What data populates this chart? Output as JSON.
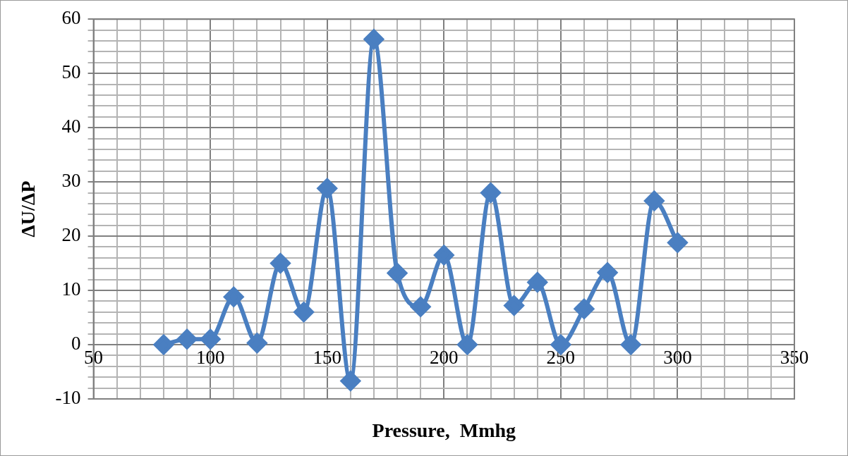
{
  "chart_data": {
    "type": "line",
    "xlabel": "Pressure,  Mmhg",
    "ylabel": "ΔU/ΔP",
    "x": [
      80,
      90,
      100,
      110,
      120,
      130,
      140,
      150,
      160,
      170,
      180,
      190,
      200,
      210,
      220,
      230,
      240,
      250,
      260,
      270,
      280,
      290,
      300
    ],
    "series": [
      {
        "color": "#4a7fc1",
        "values": [
          0,
          1,
          1,
          8.8,
          0.3,
          15,
          6,
          28.8,
          -6.7,
          56.3,
          13.2,
          7,
          16.5,
          0,
          28,
          7.2,
          11.5,
          0,
          6.6,
          13.3,
          0,
          26.5,
          18.8
        ]
      }
    ],
    "xlim": [
      50,
      350
    ],
    "xticks": [
      50,
      {
        "value": 60,
        "label": null
      },
      {
        "value": 70,
        "label": null
      },
      {
        "value": 80,
        "label": null
      },
      {
        "value": 90,
        "label": null
      },
      100,
      {
        "value": 110,
        "label": null
      },
      {
        "value": 120,
        "label": null
      },
      {
        "value": 130,
        "label": null
      },
      {
        "value": 140,
        "label": null
      },
      150,
      {
        "value": 160,
        "label": null
      },
      {
        "value": 170,
        "label": null
      },
      {
        "value": 180,
        "label": null
      },
      {
        "value": 190,
        "label": null
      },
      200,
      {
        "value": 210,
        "label": null
      },
      {
        "value": 220,
        "label": null
      },
      {
        "value": 230,
        "label": null
      },
      {
        "value": 240,
        "label": null
      },
      250,
      {
        "value": 260,
        "label": null
      },
      {
        "value": 270,
        "label": null
      },
      {
        "value": 280,
        "label": null
      },
      {
        "value": 290,
        "label": null
      },
      300,
      {
        "value": 310,
        "label": null
      },
      {
        "value": 320,
        "label": null
      },
      {
        "value": 330,
        "label": null
      },
      {
        "value": 340,
        "label": null
      },
      350
    ],
    "ylim": [
      -10,
      60
    ],
    "yticks": [
      -10,
      {
        "value": -8,
        "label": null
      },
      {
        "value": -6,
        "label": null
      },
      {
        "value": -4,
        "label": null
      },
      {
        "value": -2,
        "label": null
      },
      0,
      {
        "value": 2,
        "label": null
      },
      {
        "value": 4,
        "label": null
      },
      {
        "value": 6,
        "label": null
      },
      {
        "value": 8,
        "label": null
      },
      10,
      {
        "value": 12,
        "label": null
      },
      {
        "value": 14,
        "label": null
      },
      {
        "value": 16,
        "label": null
      },
      {
        "value": 18,
        "label": null
      },
      20,
      {
        "value": 22,
        "label": null
      },
      {
        "value": 24,
        "label": null
      },
      {
        "value": 26,
        "label": null
      },
      {
        "value": 28,
        "label": null
      },
      30,
      {
        "value": 32,
        "label": null
      },
      {
        "value": 34,
        "label": null
      },
      {
        "value": 36,
        "label": null
      },
      {
        "value": 38,
        "label": null
      },
      40,
      {
        "value": 42,
        "label": null
      },
      {
        "value": 44,
        "label": null
      },
      {
        "value": 46,
        "label": null
      },
      {
        "value": 48,
        "label": null
      },
      50,
      {
        "value": 52,
        "label": null
      },
      {
        "value": 54,
        "label": null
      },
      {
        "value": 56,
        "label": null
      },
      {
        "value": 58,
        "label": null
      },
      60
    ],
    "grid": true,
    "legend": false,
    "marker": "diamond",
    "line_style": "solid"
  }
}
